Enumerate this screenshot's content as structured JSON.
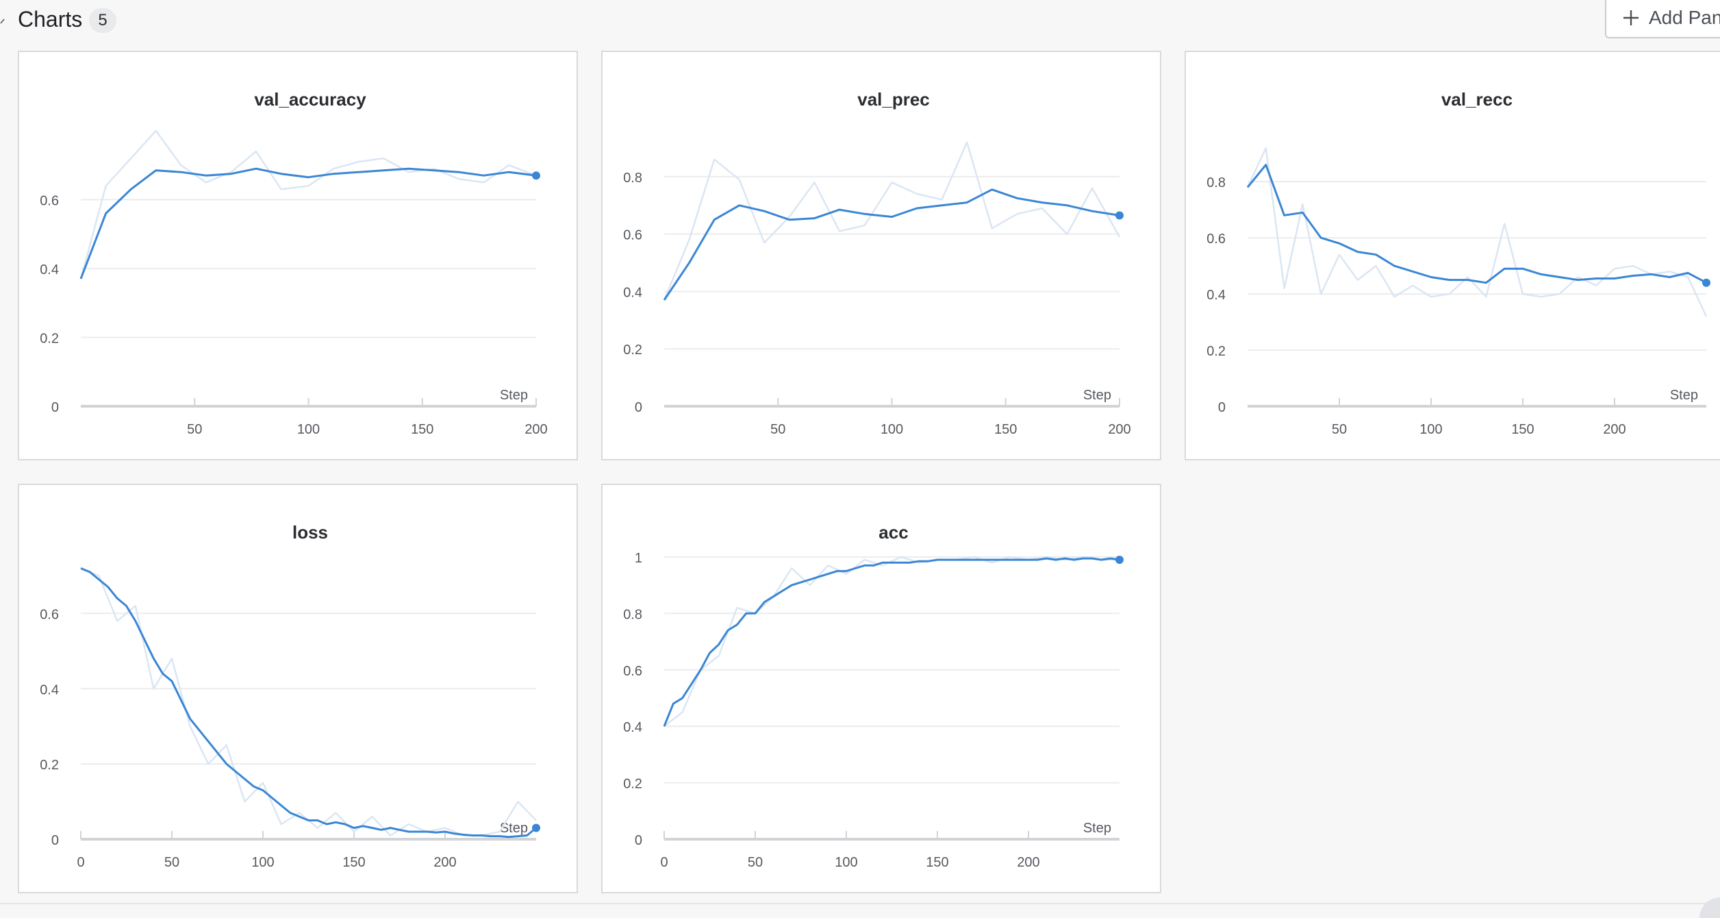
{
  "section": {
    "title": "Charts",
    "count": "5",
    "add_button_label": "Add Panel"
  },
  "icons": {
    "collapse": "chevron-icon",
    "add": "plus-icon"
  },
  "colors": {
    "line": "#3a86d4",
    "raw_line": "#dbe6f3",
    "grid": "#ececee",
    "axis": "#d2d3d6"
  },
  "chart_data": [
    {
      "type": "line",
      "title": "val_accuracy",
      "xlabel": "Step",
      "xlim": [
        0,
        200
      ],
      "ylim": [
        0,
        0.75
      ],
      "xticks": [
        50,
        100,
        150,
        200
      ],
      "yticks": [
        0,
        0.2,
        0.4,
        0.6
      ],
      "series": [
        {
          "x": [
            0,
            11,
            22,
            33,
            44,
            55,
            66,
            77,
            88,
            100,
            111,
            122,
            133,
            144,
            155,
            166,
            177,
            188,
            200
          ],
          "y": [
            0.37,
            0.64,
            0.72,
            0.8,
            0.7,
            0.65,
            0.68,
            0.74,
            0.63,
            0.64,
            0.69,
            0.71,
            0.72,
            0.68,
            0.69,
            0.66,
            0.65,
            0.7,
            0.67
          ]
        },
        {
          "x": [
            0,
            11,
            22,
            33,
            44,
            55,
            66,
            77,
            88,
            100,
            111,
            122,
            133,
            144,
            155,
            166,
            177,
            188,
            200
          ],
          "y": [
            0.37,
            0.56,
            0.63,
            0.685,
            0.68,
            0.67,
            0.675,
            0.69,
            0.675,
            0.665,
            0.675,
            0.68,
            0.685,
            0.69,
            0.685,
            0.68,
            0.67,
            0.68,
            0.67
          ]
        }
      ]
    },
    {
      "type": "line",
      "title": "val_prec",
      "xlabel": "Step",
      "xlim": [
        0,
        200
      ],
      "ylim": [
        0,
        0.9
      ],
      "xticks": [
        50,
        100,
        150,
        200
      ],
      "yticks": [
        0,
        0.2,
        0.4,
        0.6,
        0.8
      ],
      "series": [
        {
          "x": [
            0,
            11,
            22,
            33,
            44,
            55,
            66,
            77,
            88,
            100,
            111,
            122,
            133,
            144,
            155,
            166,
            177,
            188,
            200
          ],
          "y": [
            0.37,
            0.58,
            0.86,
            0.79,
            0.57,
            0.66,
            0.78,
            0.61,
            0.63,
            0.78,
            0.74,
            0.72,
            0.92,
            0.62,
            0.67,
            0.69,
            0.6,
            0.76,
            0.59
          ]
        },
        {
          "x": [
            0,
            11,
            22,
            33,
            44,
            55,
            66,
            77,
            88,
            100,
            111,
            122,
            133,
            144,
            155,
            166,
            177,
            188,
            200
          ],
          "y": [
            0.37,
            0.5,
            0.65,
            0.7,
            0.68,
            0.65,
            0.655,
            0.685,
            0.67,
            0.66,
            0.69,
            0.7,
            0.71,
            0.755,
            0.725,
            0.71,
            0.7,
            0.68,
            0.665
          ]
        }
      ]
    },
    {
      "type": "line",
      "title": "val_recc",
      "xlabel": "Step",
      "xlim": [
        0,
        250
      ],
      "ylim": [
        0,
        0.92
      ],
      "xticks": [
        50,
        100,
        150,
        200
      ],
      "yticks": [
        0,
        0.2,
        0.4,
        0.6,
        0.8
      ],
      "series": [
        {
          "x": [
            0,
            10,
            20,
            30,
            40,
            50,
            60,
            70,
            80,
            90,
            100,
            110,
            120,
            130,
            140,
            150,
            160,
            170,
            180,
            190,
            200,
            210,
            220,
            230,
            240,
            250
          ],
          "y": [
            0.78,
            0.92,
            0.42,
            0.72,
            0.4,
            0.54,
            0.45,
            0.5,
            0.39,
            0.43,
            0.39,
            0.4,
            0.46,
            0.39,
            0.65,
            0.4,
            0.39,
            0.4,
            0.46,
            0.43,
            0.49,
            0.5,
            0.47,
            0.48,
            0.46,
            0.32
          ]
        },
        {
          "x": [
            0,
            10,
            20,
            30,
            40,
            50,
            60,
            70,
            80,
            90,
            100,
            110,
            120,
            130,
            140,
            150,
            160,
            170,
            180,
            190,
            200,
            210,
            220,
            230,
            240,
            250
          ],
          "y": [
            0.78,
            0.86,
            0.68,
            0.69,
            0.6,
            0.58,
            0.55,
            0.54,
            0.5,
            0.48,
            0.46,
            0.45,
            0.45,
            0.44,
            0.49,
            0.49,
            0.47,
            0.46,
            0.45,
            0.455,
            0.455,
            0.465,
            0.47,
            0.46,
            0.475,
            0.44
          ]
        }
      ]
    },
    {
      "type": "line",
      "title": "loss",
      "xlabel": "Step",
      "xlim": [
        0,
        250
      ],
      "ylim": [
        0,
        0.75
      ],
      "xticks": [
        0,
        50,
        100,
        150,
        200
      ],
      "yticks": [
        0,
        0.2,
        0.4,
        0.6
      ],
      "series": [
        {
          "x": [
            0,
            10,
            20,
            30,
            40,
            50,
            60,
            70,
            80,
            90,
            100,
            110,
            120,
            130,
            140,
            150,
            160,
            170,
            180,
            190,
            200,
            210,
            220,
            230,
            240,
            250
          ],
          "y": [
            0.72,
            0.7,
            0.58,
            0.62,
            0.4,
            0.48,
            0.3,
            0.2,
            0.25,
            0.1,
            0.15,
            0.04,
            0.07,
            0.03,
            0.07,
            0.02,
            0.06,
            0.01,
            0.04,
            0.02,
            0.03,
            0.01,
            0.01,
            0.02,
            0.1,
            0.05
          ]
        },
        {
          "x": [
            0,
            5,
            10,
            15,
            20,
            25,
            30,
            35,
            40,
            45,
            50,
            55,
            60,
            65,
            70,
            75,
            80,
            85,
            90,
            95,
            100,
            105,
            110,
            115,
            120,
            125,
            130,
            135,
            140,
            145,
            150,
            155,
            160,
            165,
            170,
            175,
            180,
            185,
            190,
            195,
            200,
            205,
            210,
            215,
            220,
            225,
            230,
            235,
            240,
            245,
            250
          ],
          "y": [
            0.72,
            0.71,
            0.69,
            0.67,
            0.64,
            0.62,
            0.58,
            0.53,
            0.48,
            0.44,
            0.42,
            0.37,
            0.32,
            0.29,
            0.26,
            0.23,
            0.2,
            0.18,
            0.16,
            0.14,
            0.13,
            0.11,
            0.09,
            0.07,
            0.06,
            0.05,
            0.05,
            0.04,
            0.045,
            0.04,
            0.03,
            0.035,
            0.03,
            0.025,
            0.03,
            0.025,
            0.02,
            0.02,
            0.02,
            0.018,
            0.02,
            0.015,
            0.012,
            0.01,
            0.01,
            0.008,
            0.008,
            0.006,
            0.008,
            0.01,
            0.03
          ]
        }
      ]
    },
    {
      "type": "line",
      "title": "acc",
      "xlabel": "Step",
      "xlim": [
        0,
        250
      ],
      "ylim": [
        0,
        1
      ],
      "xticks": [
        0,
        50,
        100,
        150,
        200
      ],
      "yticks": [
        0,
        0.2,
        0.4,
        0.6,
        0.8,
        1
      ],
      "series": [
        {
          "x": [
            0,
            10,
            20,
            30,
            40,
            50,
            60,
            70,
            80,
            90,
            100,
            110,
            120,
            130,
            140,
            150,
            160,
            170,
            180,
            190,
            200,
            210,
            220,
            230,
            240,
            250
          ],
          "y": [
            0.4,
            0.45,
            0.6,
            0.65,
            0.82,
            0.8,
            0.86,
            0.96,
            0.9,
            0.97,
            0.94,
            0.99,
            0.97,
            1.0,
            0.98,
            0.99,
            0.99,
            1.0,
            0.98,
            1.0,
            0.99,
            1.0,
            0.99,
            1.0,
            0.99,
            0.99
          ]
        },
        {
          "x": [
            0,
            5,
            10,
            15,
            20,
            25,
            30,
            35,
            40,
            45,
            50,
            55,
            60,
            65,
            70,
            75,
            80,
            85,
            90,
            95,
            100,
            105,
            110,
            115,
            120,
            125,
            130,
            135,
            140,
            145,
            150,
            155,
            160,
            165,
            170,
            175,
            180,
            185,
            190,
            195,
            200,
            205,
            210,
            215,
            220,
            225,
            230,
            235,
            240,
            245,
            250
          ],
          "y": [
            0.4,
            0.48,
            0.5,
            0.55,
            0.6,
            0.66,
            0.69,
            0.74,
            0.76,
            0.8,
            0.8,
            0.84,
            0.86,
            0.88,
            0.9,
            0.91,
            0.92,
            0.93,
            0.94,
            0.95,
            0.95,
            0.96,
            0.97,
            0.97,
            0.98,
            0.98,
            0.98,
            0.98,
            0.985,
            0.985,
            0.99,
            0.99,
            0.99,
            0.99,
            0.99,
            0.99,
            0.99,
            0.99,
            0.99,
            0.99,
            0.99,
            0.99,
            0.995,
            0.99,
            0.995,
            0.99,
            0.995,
            0.995,
            0.99,
            0.995,
            0.99
          ]
        }
      ]
    }
  ]
}
